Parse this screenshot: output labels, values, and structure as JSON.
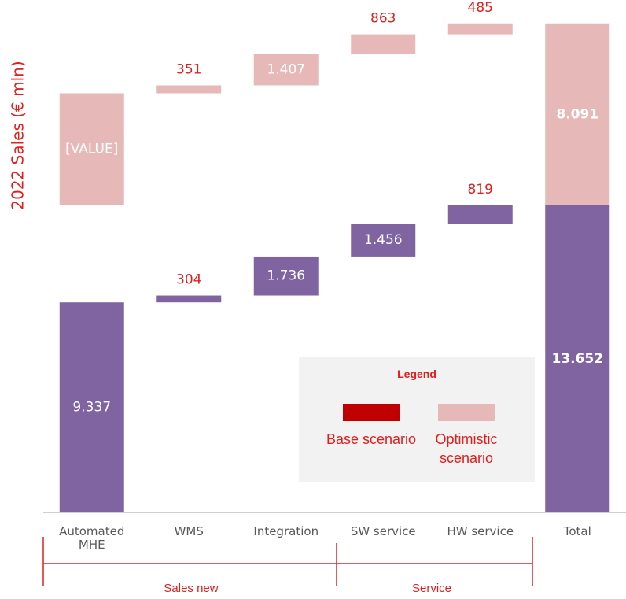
{
  "chart_data": {
    "type": "waterfall",
    "y_label": "2022 Sales (€ mln)",
    "categories": [
      "Automated MHE",
      "WMS",
      "Integration",
      "SW service",
      "HW service",
      "Total"
    ],
    "is_total": [
      false,
      false,
      false,
      false,
      false,
      true
    ],
    "groups": [
      "Sales new",
      "Service"
    ],
    "ylim": [
      0,
      22000
    ],
    "series": [
      {
        "name": "Base scenario",
        "color": "#8064a2",
        "legend_color": "#c00000",
        "values": [
          9337,
          304,
          1736,
          1456,
          819,
          13652
        ],
        "value_labels": [
          "9.337",
          "304",
          "1.736",
          "1.456",
          "819",
          "13.652"
        ]
      },
      {
        "name": "Optimistic scenario",
        "color": "#e6b9b8",
        "legend_color": "#e6b8b7",
        "values": [
          4985,
          351,
          1407,
          863,
          485,
          8091
        ],
        "value_labels": [
          "[VALUE]",
          "351",
          "1.407",
          "863",
          "485",
          "8.091"
        ]
      }
    ],
    "legend_title": "Legend"
  }
}
